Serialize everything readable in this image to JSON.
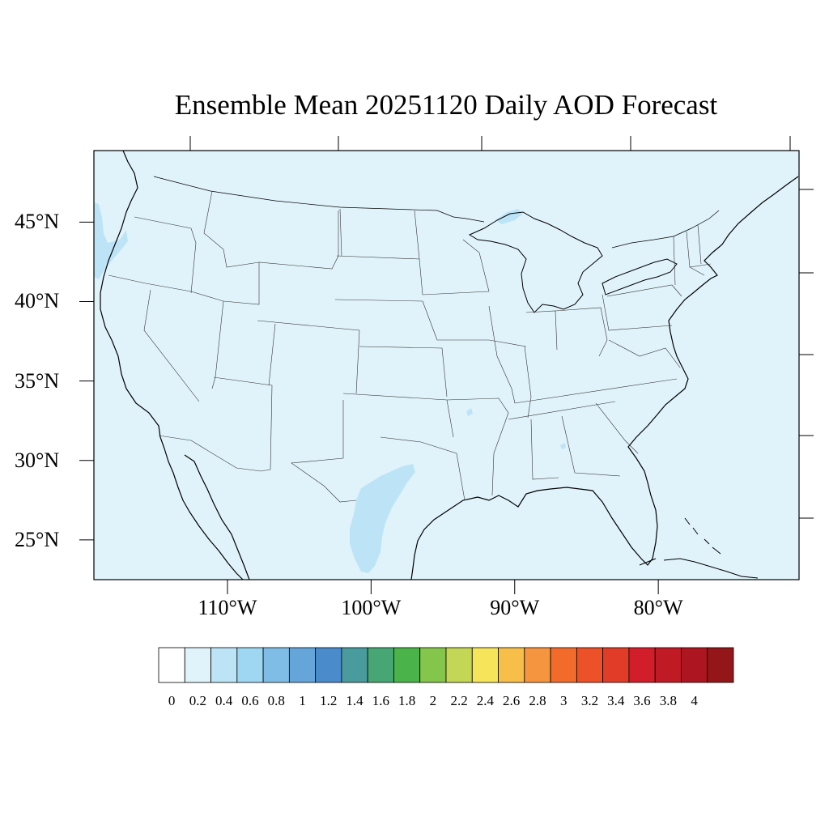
{
  "map": {
    "title": "Ensemble Mean 20251120 Daily AOD Forecast",
    "projection": "lat-lon",
    "lon_range": [
      -119.3,
      -70.2
    ],
    "lat_range": [
      22.5,
      49.5
    ],
    "background_fill": "#e0f3fb",
    "lat_ticks": [
      {
        "value": 45,
        "label": "45°N"
      },
      {
        "value": 40,
        "label": "40°N"
      },
      {
        "value": 35,
        "label": "35°N"
      },
      {
        "value": 30,
        "label": "30°N"
      },
      {
        "value": 25,
        "label": "25°N"
      }
    ],
    "lon_ticks": [
      {
        "value": -110,
        "label": "110°W"
      },
      {
        "value": -100,
        "label": "100°W"
      },
      {
        "value": -90,
        "label": "90°W"
      },
      {
        "value": -80,
        "label": "80°W"
      }
    ],
    "higher_aod_regions": [
      {
        "name": "south-texas-plume",
        "level": "0.2-0.4",
        "color": "#bde4f6"
      },
      {
        "name": "pacific-northwest-coast",
        "level": "0.2-0.4",
        "color": "#bde4f6"
      },
      {
        "name": "upper-michigan",
        "level": "0.2-0.4",
        "color": "#bde4f6"
      }
    ]
  },
  "colorbar": {
    "labels": [
      "0",
      "0.2",
      "0.4",
      "0.6",
      "0.8",
      "1",
      "1.2",
      "1.4",
      "1.6",
      "1.8",
      "2",
      "2.2",
      "2.4",
      "2.6",
      "2.8",
      "3",
      "3.2",
      "3.4",
      "3.6",
      "3.8",
      "4"
    ],
    "colors": [
      "#ffffff",
      "#e0f3fb",
      "#bde4f6",
      "#9fd7f3",
      "#80bde6",
      "#66a5da",
      "#4a8bcb",
      "#4a9b9e",
      "#47a673",
      "#4ab44a",
      "#84c54c",
      "#c3d655",
      "#f6e45a",
      "#f7bf49",
      "#f6953f",
      "#f36b2b",
      "#ec5129",
      "#e03c27",
      "#d21e2a",
      "#c01a24",
      "#ad1620",
      "#941619"
    ]
  }
}
